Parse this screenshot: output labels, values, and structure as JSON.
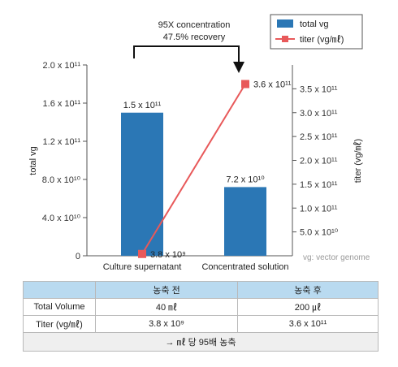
{
  "chart_data": {
    "type": "bar",
    "categories": [
      "Culture supernatant",
      "Concentrated solution"
    ],
    "series": [
      {
        "name": "total vg",
        "kind": "bar",
        "axis": "left",
        "color": "#2b77b5",
        "values": [
          150000000000.0,
          72000000000.0
        ],
        "labels": [
          "1.5 x 10¹¹",
          "7.2 x 10¹⁰"
        ]
      },
      {
        "name": "titer (vg/㎖)",
        "kind": "line",
        "axis": "right",
        "color": "#e8595a",
        "values": [
          3800000000.0,
          360000000000.0
        ],
        "labels": [
          "3.8 x 10⁹",
          "3.6 x 10¹¹"
        ]
      }
    ],
    "ylabel": "total vg",
    "y2label": "titer (vg/㎖)",
    "ylim": [
      0,
      200000000000.0
    ],
    "y2lim": [
      0,
      400000000000.0
    ],
    "yticks": [
      0,
      40000000000.0,
      80000000000.0,
      120000000000.0,
      160000000000.0,
      200000000000.0
    ],
    "yticklabels": [
      "0",
      "4.0 x 10¹⁰",
      "8.0 x 10¹⁰",
      "1.2 x 10¹¹",
      "1.6 x 10¹¹",
      "2.0 x 10¹¹"
    ],
    "y2ticks": [
      50000000000.0,
      100000000000.0,
      150000000000.0,
      200000000000.0,
      250000000000.0,
      300000000000.0,
      350000000000.0
    ],
    "y2ticklabels": [
      "5.0 x 10¹⁰",
      "1.0 x 10¹¹",
      "1.5 x 10¹¹",
      "2.0 x 10¹¹",
      "2.5 x 10¹¹",
      "3.0 x 10¹¹",
      "3.5 x 10¹¹"
    ],
    "annotation": [
      "95X concentration",
      "47.5% recovery"
    ],
    "note": "vg: vector genome",
    "legend_position": "top-right",
    "grid": false
  },
  "table": {
    "headers": [
      "",
      "농축 전",
      "농축 후"
    ],
    "rows": [
      [
        "Total Volume",
        "40 ㎖",
        "200 ㎕"
      ],
      [
        "Titer (vg/㎖)",
        "3.8 x 10⁹",
        "3.6 x 10¹¹"
      ]
    ],
    "summary": "→ ㎖ 당 95배 농축"
  }
}
